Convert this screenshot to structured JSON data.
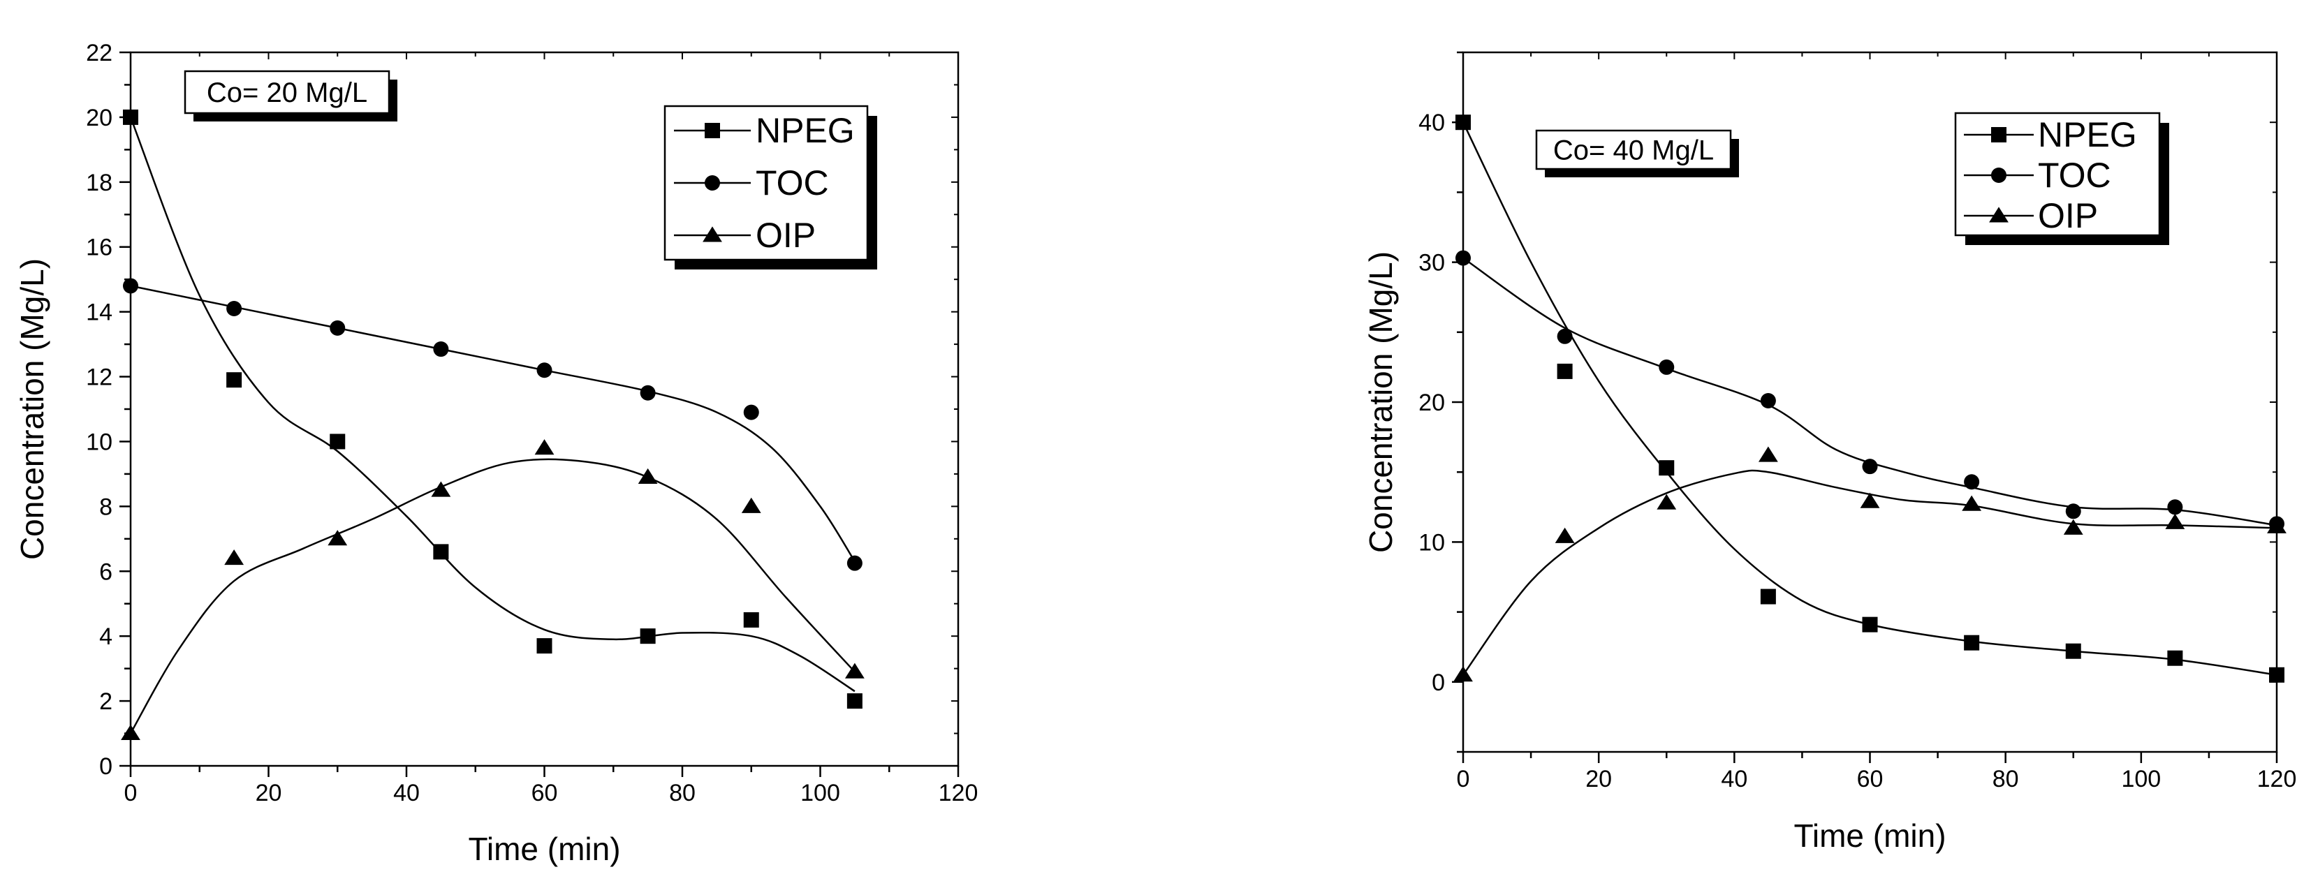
{
  "chart_data": [
    {
      "type": "line",
      "annotation": "Co= 20 Mg/L",
      "xlabel": "Time (min)",
      "ylabel": "Concentration (Mg/L)",
      "xlim": [
        0,
        120
      ],
      "ylim": [
        0,
        22
      ],
      "xticks": [
        0,
        20,
        40,
        60,
        80,
        100,
        120
      ],
      "yticks": [
        0,
        2,
        4,
        6,
        8,
        10,
        12,
        14,
        16,
        18,
        20,
        22
      ],
      "legend_position": "top-right",
      "series": [
        {
          "name": "NPEG",
          "marker": "square",
          "x": [
            0,
            15,
            30,
            45,
            60,
            75,
            90,
            105
          ],
          "y": [
            20.0,
            11.9,
            10.0,
            6.6,
            3.7,
            4.0,
            4.5,
            2.0
          ],
          "fit": [
            [
              0,
              20.0
            ],
            [
              10,
              14.5
            ],
            [
              20,
              11.2
            ],
            [
              30,
              9.7
            ],
            [
              40,
              7.7
            ],
            [
              50,
              5.5
            ],
            [
              60,
              4.2
            ],
            [
              70,
              3.9
            ],
            [
              80,
              4.1
            ],
            [
              90,
              4.0
            ],
            [
              97,
              3.4
            ],
            [
              105,
              2.3
            ]
          ]
        },
        {
          "name": "TOC",
          "marker": "circle",
          "x": [
            0,
            15,
            30,
            45,
            60,
            75,
            90,
            105
          ],
          "y": [
            14.8,
            14.1,
            13.5,
            12.85,
            12.2,
            11.5,
            10.9,
            6.25
          ],
          "fit": [
            [
              0,
              14.8
            ],
            [
              15,
              14.15
            ],
            [
              30,
              13.5
            ],
            [
              45,
              12.85
            ],
            [
              60,
              12.2
            ],
            [
              75,
              11.55
            ],
            [
              85,
              10.9
            ],
            [
              93,
              9.8
            ],
            [
              100,
              8.0
            ],
            [
              105,
              6.3
            ]
          ]
        },
        {
          "name": "OIP",
          "marker": "triangle",
          "x": [
            0,
            15,
            30,
            45,
            60,
            75,
            90,
            105
          ],
          "y": [
            1.0,
            6.4,
            7.0,
            8.5,
            9.8,
            8.9,
            8.0,
            2.9
          ],
          "fit": [
            [
              0,
              1.0
            ],
            [
              7,
              3.6
            ],
            [
              15,
              5.7
            ],
            [
              25,
              6.7
            ],
            [
              35,
              7.6
            ],
            [
              45,
              8.6
            ],
            [
              55,
              9.35
            ],
            [
              65,
              9.4
            ],
            [
              75,
              8.9
            ],
            [
              85,
              7.6
            ],
            [
              95,
              5.2
            ],
            [
              105,
              2.9
            ]
          ]
        }
      ]
    },
    {
      "type": "line",
      "annotation": "Co= 40 Mg/L",
      "xlabel": "Time (min)",
      "ylabel": "Concentration (Mg/L)",
      "xlim": [
        0,
        120
      ],
      "ylim": [
        -5,
        45
      ],
      "xticks": [
        0,
        20,
        40,
        60,
        80,
        100,
        120
      ],
      "yticks": [
        0,
        10,
        20,
        30,
        40
      ],
      "legend_position": "top-right",
      "series": [
        {
          "name": "NPEG",
          "marker": "square",
          "x": [
            0,
            15,
            30,
            45,
            60,
            75,
            90,
            105,
            120
          ],
          "y": [
            40.0,
            22.2,
            15.3,
            6.1,
            4.1,
            2.8,
            2.2,
            1.7,
            0.5
          ],
          "fit": [
            [
              0,
              40.0
            ],
            [
              10,
              30.0
            ],
            [
              20,
              21.5
            ],
            [
              30,
              15.0
            ],
            [
              40,
              9.5
            ],
            [
              50,
              5.8
            ],
            [
              60,
              4.1
            ],
            [
              75,
              2.9
            ],
            [
              90,
              2.2
            ],
            [
              105,
              1.6
            ],
            [
              120,
              0.5
            ]
          ]
        },
        {
          "name": "TOC",
          "marker": "circle",
          "x": [
            0,
            15,
            30,
            45,
            60,
            75,
            90,
            105,
            120
          ],
          "y": [
            30.3,
            24.7,
            22.5,
            20.1,
            15.4,
            14.3,
            12.2,
            12.5,
            11.3
          ],
          "fit": [
            [
              0,
              30.3
            ],
            [
              15,
              25.3
            ],
            [
              30,
              22.4
            ],
            [
              45,
              19.8
            ],
            [
              55,
              16.6
            ],
            [
              65,
              15.0
            ],
            [
              75,
              13.9
            ],
            [
              90,
              12.5
            ],
            [
              105,
              12.3
            ],
            [
              120,
              11.2
            ]
          ]
        },
        {
          "name": "OIP",
          "marker": "triangle",
          "x": [
            0,
            15,
            30,
            45,
            60,
            75,
            90,
            105,
            120
          ],
          "y": [
            0.5,
            10.4,
            12.8,
            16.2,
            12.9,
            12.7,
            11.0,
            11.4,
            11.1
          ],
          "fit": [
            [
              0,
              0.5
            ],
            [
              10,
              7.2
            ],
            [
              20,
              11.0
            ],
            [
              30,
              13.5
            ],
            [
              40,
              14.9
            ],
            [
              45,
              15.0
            ],
            [
              55,
              13.9
            ],
            [
              65,
              13.0
            ],
            [
              75,
              12.6
            ],
            [
              90,
              11.3
            ],
            [
              105,
              11.2
            ],
            [
              120,
              11.0
            ]
          ]
        }
      ]
    }
  ]
}
